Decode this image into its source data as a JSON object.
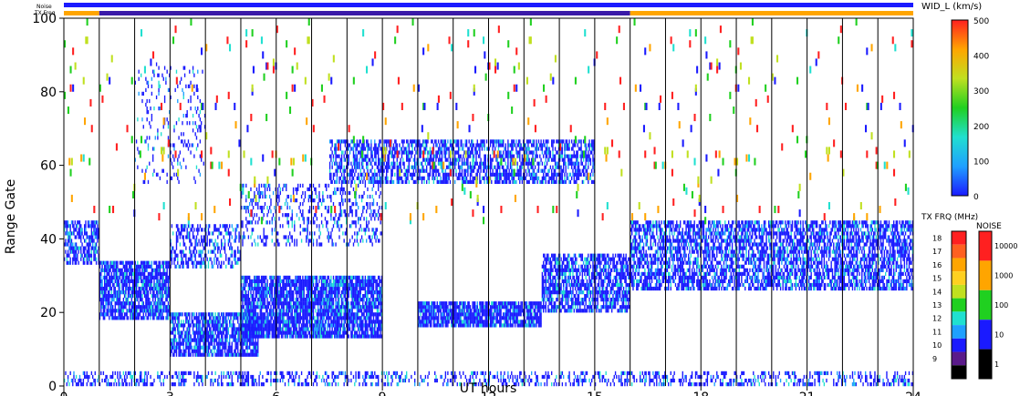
{
  "chart_data": {
    "type": "heatmap",
    "xlabel": "UT hours",
    "ylabel": "Range Gate",
    "xlim": [
      0,
      24
    ],
    "ylim": [
      0,
      100
    ],
    "x_ticks": [
      0,
      3,
      6,
      9,
      12,
      15,
      18,
      21,
      24
    ],
    "y_ticks": [
      0,
      20,
      40,
      60,
      80,
      100
    ],
    "hour_gridlines": [
      1,
      2,
      3,
      4,
      5,
      6,
      7,
      8,
      9,
      10,
      11,
      12,
      13,
      14,
      15,
      16,
      17,
      18,
      19,
      20,
      21,
      22,
      23
    ],
    "status_bars": {
      "noise_label": "Noise",
      "txfreq_label": "TX Freq",
      "noise_color": "#1a1aff",
      "txfreq_segments": [
        {
          "start": 0,
          "end": 1,
          "color": "#ffa500"
        },
        {
          "start": 1,
          "end": 16,
          "color": "#3a1aa8"
        },
        {
          "start": 16,
          "end": 24,
          "color": "#ffa500"
        }
      ]
    },
    "scatter_blocks": [
      {
        "x0": 0.0,
        "x1": 1.0,
        "y0": 33,
        "y1": 45,
        "density": 0.65
      },
      {
        "x0": 1.0,
        "x1": 3.0,
        "y0": 18,
        "y1": 34,
        "density": 0.8
      },
      {
        "x0": 3.0,
        "x1": 5.5,
        "y0": 8,
        "y1": 20,
        "density": 0.8
      },
      {
        "x0": 3.0,
        "x1": 5.0,
        "y0": 32,
        "y1": 44,
        "density": 0.45
      },
      {
        "x0": 5.0,
        "x1": 9.0,
        "y0": 13,
        "y1": 30,
        "density": 0.85
      },
      {
        "x0": 5.0,
        "x1": 9.0,
        "y0": 38,
        "y1": 55,
        "density": 0.25
      },
      {
        "x0": 7.5,
        "x1": 15.0,
        "y0": 55,
        "y1": 67,
        "density": 0.6
      },
      {
        "x0": 10.0,
        "x1": 13.5,
        "y0": 16,
        "y1": 23,
        "density": 0.85
      },
      {
        "x0": 13.5,
        "x1": 16.0,
        "y0": 20,
        "y1": 36,
        "density": 0.7
      },
      {
        "x0": 16.0,
        "x1": 24.0,
        "y0": 26,
        "y1": 45,
        "density": 0.65
      },
      {
        "x0": 0.0,
        "x1": 24.0,
        "y0": 0,
        "y1": 4,
        "density": 0.35
      },
      {
        "x0": 2.0,
        "x1": 4.0,
        "y0": 55,
        "y1": 88,
        "density": 0.12
      },
      {
        "x0": 0.0,
        "x1": 24.0,
        "y0": 45,
        "y1": 100,
        "density": 0.012
      }
    ],
    "colorbars": [
      {
        "title": "WID_L (km/s)",
        "min": 0,
        "max": 500,
        "ticks": [
          0,
          100,
          200,
          300,
          400,
          500
        ],
        "stops": [
          "#1a1aff",
          "#1fa0ff",
          "#20e0d0",
          "#20d020",
          "#c0e020",
          "#ffa500",
          "#ff2020"
        ]
      },
      {
        "title": "TX FRQ (MHz)",
        "labels": [
          "18",
          "17",
          "16",
          "15",
          "14",
          "13",
          "12",
          "11",
          "10",
          "9"
        ],
        "colors": [
          "#ff2020",
          "#ff6020",
          "#ffa500",
          "#ffd020",
          "#c0e020",
          "#20d020",
          "#20e0d0",
          "#1fa0ff",
          "#1a1aff",
          "#5a1a8a",
          "#000000"
        ]
      },
      {
        "title": "NOISE",
        "labels": [
          "10000",
          "1000",
          "100",
          "10",
          "1"
        ],
        "colors": [
          "#ff2020",
          "#ffa500",
          "#20d020",
          "#1a1aff",
          "#000000"
        ]
      }
    ]
  }
}
